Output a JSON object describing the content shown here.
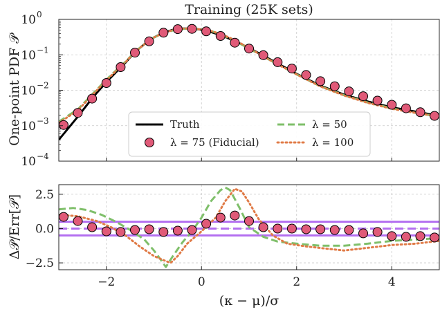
{
  "chart_data": [
    {
      "type": "line",
      "title": "Training (25K sets)",
      "ylabel": "One-point PDF 𝒫",
      "xlabel": "",
      "xlim": [
        -3.0,
        5.0
      ],
      "ylim": [
        0.0001,
        1.0
      ],
      "yscale": "log",
      "grid": true,
      "legend_placement": "lower-center",
      "x_ticks": [
        -2,
        0,
        2,
        4
      ],
      "y_ticks": [
        0.0001,
        0.001,
        0.01,
        0.1,
        1
      ],
      "y_tick_labels": [
        {
          "base": "10",
          "exp": "−4"
        },
        {
          "base": "10",
          "exp": "−3"
        },
        {
          "base": "10",
          "exp": "−2"
        },
        {
          "base": "10",
          "exp": "−1"
        },
        {
          "base": "10",
          "exp": "0"
        }
      ],
      "series": [
        {
          "name": "Truth",
          "style": "solid",
          "color": "#000000",
          "x": [
            -3.0,
            -2.6,
            -2.4,
            -2.2,
            -2.0,
            -1.8,
            -1.6,
            -1.4,
            -1.2,
            -1.0,
            -0.8,
            -0.6,
            -0.4,
            -0.2,
            0.0,
            0.2,
            0.4,
            0.6,
            0.8,
            1.0,
            1.2,
            1.4,
            1.6,
            1.8,
            2.0,
            2.5,
            3.0,
            3.5,
            4.0,
            4.5,
            5.0
          ],
          "y": [
            0.0004,
            0.0018,
            0.004,
            0.0085,
            0.017,
            0.032,
            0.06,
            0.12,
            0.2,
            0.31,
            0.42,
            0.51,
            0.55,
            0.55,
            0.51,
            0.44,
            0.36,
            0.28,
            0.21,
            0.155,
            0.112,
            0.08,
            0.057,
            0.041,
            0.029,
            0.0135,
            0.0075,
            0.0048,
            0.0033,
            0.0025,
            0.0019
          ]
        },
        {
          "name": "λ = 75 (Fiducial)",
          "style": "markers",
          "color": "#e05a78",
          "x": [
            -2.9,
            -2.6,
            -2.3,
            -2.0,
            -1.7,
            -1.4,
            -1.1,
            -0.8,
            -0.5,
            -0.2,
            0.1,
            0.4,
            0.7,
            1.0,
            1.3,
            1.6,
            1.9,
            2.2,
            2.5,
            2.8,
            3.1,
            3.4,
            3.7,
            4.0,
            4.3,
            4.6,
            4.9
          ],
          "y": [
            0.00105,
            0.0023,
            0.0058,
            0.016,
            0.045,
            0.115,
            0.24,
            0.42,
            0.53,
            0.54,
            0.46,
            0.34,
            0.22,
            0.15,
            0.098,
            0.062,
            0.041,
            0.027,
            0.018,
            0.013,
            0.0093,
            0.0068,
            0.0051,
            0.0039,
            0.0031,
            0.0024,
            0.0019
          ]
        },
        {
          "name": "λ = 50",
          "style": "dashed",
          "color": "#7fbf6a",
          "x": [
            -3.0,
            -2.6,
            -2.4,
            -2.2,
            -2.0,
            -1.8,
            -1.6,
            -1.4,
            -1.2,
            -1.0,
            -0.8,
            -0.6,
            -0.4,
            -0.2,
            0.0,
            0.2,
            0.4,
            0.6,
            0.8,
            1.0,
            1.2,
            1.4,
            1.6,
            1.8,
            2.0,
            2.5,
            3.0,
            3.5,
            4.0,
            4.5,
            5.0
          ],
          "y": [
            0.0013,
            0.0029,
            0.0055,
            0.0105,
            0.02,
            0.036,
            0.064,
            0.12,
            0.2,
            0.31,
            0.4,
            0.49,
            0.54,
            0.55,
            0.53,
            0.47,
            0.38,
            0.28,
            0.21,
            0.15,
            0.107,
            0.076,
            0.054,
            0.039,
            0.028,
            0.013,
            0.0072,
            0.0045,
            0.0031,
            0.0023,
            0.0018
          ]
        },
        {
          "name": "λ = 100",
          "style": "dotted",
          "color": "#e07b47",
          "x": [
            -3.0,
            -2.6,
            -2.4,
            -2.2,
            -2.0,
            -1.8,
            -1.6,
            -1.4,
            -1.2,
            -1.0,
            -0.8,
            -0.6,
            -0.4,
            -0.2,
            0.0,
            0.2,
            0.4,
            0.6,
            0.8,
            1.0,
            1.2,
            1.4,
            1.6,
            1.8,
            2.0,
            2.5,
            3.0,
            3.5,
            4.0,
            4.5,
            5.0
          ],
          "y": [
            0.0012,
            0.0027,
            0.0052,
            0.01,
            0.019,
            0.035,
            0.062,
            0.12,
            0.2,
            0.31,
            0.41,
            0.5,
            0.55,
            0.55,
            0.52,
            0.47,
            0.39,
            0.3,
            0.22,
            0.155,
            0.108,
            0.076,
            0.054,
            0.039,
            0.028,
            0.0128,
            0.0071,
            0.0044,
            0.003,
            0.0023,
            0.0018
          ]
        }
      ]
    },
    {
      "type": "line",
      "title": "",
      "ylabel": "Δ𝒫/Err[𝒫]",
      "xlabel": "(κ − μ)/σ",
      "xlim": [
        -3.0,
        5.0
      ],
      "ylim": [
        -3.0,
        3.2
      ],
      "grid": true,
      "x_ticks": [
        -2,
        0,
        2,
        4
      ],
      "x_tick_labels": [
        "−2",
        "0",
        "2",
        "4"
      ],
      "y_ticks": [
        -2.5,
        0.0,
        2.5
      ],
      "y_tick_labels": [
        "−2.5",
        "0.0",
        "2.5"
      ],
      "reference_lines": [
        {
          "y": 0.5,
          "style": "solid",
          "color": "#b36ef0"
        },
        {
          "y": -0.5,
          "style": "solid",
          "color": "#b36ef0"
        },
        {
          "y": 0.0,
          "style": "dashed",
          "color": "#b36ef0"
        }
      ],
      "series": [
        {
          "name": "λ = 75 (Fiducial)",
          "style": "markers",
          "color": "#e05a78",
          "x": [
            -2.9,
            -2.6,
            -2.3,
            -2.0,
            -1.7,
            -1.4,
            -1.1,
            -0.8,
            -0.5,
            -0.2,
            0.1,
            0.4,
            0.7,
            1.0,
            1.3,
            1.6,
            1.9,
            2.2,
            2.5,
            2.8,
            3.1,
            3.4,
            3.7,
            4.0,
            4.3,
            4.6,
            4.9
          ],
          "y": [
            0.85,
            0.55,
            0.1,
            -0.2,
            -0.25,
            -0.1,
            -0.05,
            -0.25,
            -0.15,
            -0.1,
            0.35,
            0.8,
            0.95,
            0.55,
            0.1,
            0.0,
            0.0,
            -0.05,
            -0.05,
            -0.1,
            -0.1,
            -0.35,
            -0.25,
            -0.55,
            -0.6,
            -0.55,
            -0.65
          ]
        },
        {
          "name": "λ = 50",
          "style": "dashed",
          "color": "#7fbf6a",
          "x": [
            -3.0,
            -2.7,
            -2.4,
            -2.1,
            -1.8,
            -1.5,
            -1.2,
            -1.0,
            -0.85,
            -0.75,
            -0.6,
            -0.4,
            -0.2,
            0.0,
            0.2,
            0.4,
            0.5,
            0.6,
            0.8,
            1.0,
            1.3,
            1.6,
            2.0,
            2.5,
            3.0,
            3.5,
            4.0,
            4.5,
            5.0
          ],
          "y": [
            1.4,
            1.5,
            1.35,
            1.0,
            0.5,
            -0.1,
            -0.8,
            -1.6,
            -2.3,
            -2.8,
            -2.0,
            -1.0,
            -0.2,
            0.8,
            2.0,
            2.8,
            3.0,
            2.8,
            1.5,
            0.1,
            -0.6,
            -0.95,
            -1.1,
            -1.25,
            -1.25,
            -1.1,
            -0.9,
            -0.8,
            -0.7
          ]
        },
        {
          "name": "λ = 100",
          "style": "dotted",
          "color": "#e07b47",
          "x": [
            -3.0,
            -2.6,
            -2.2,
            -1.9,
            -1.6,
            -1.3,
            -1.0,
            -0.8,
            -0.65,
            -0.5,
            -0.3,
            0.0,
            0.3,
            0.5,
            0.7,
            0.85,
            1.0,
            1.2,
            1.5,
            1.8,
            2.2,
            2.6,
            3.0,
            3.5,
            4.0,
            4.5,
            5.0
          ],
          "y": [
            1.0,
            0.9,
            0.55,
            0.1,
            -0.5,
            -1.3,
            -2.0,
            -2.3,
            -2.5,
            -2.0,
            -1.1,
            -0.2,
            0.8,
            2.0,
            2.9,
            2.7,
            1.9,
            0.7,
            -0.5,
            -1.1,
            -1.3,
            -1.45,
            -1.6,
            -1.4,
            -1.2,
            -1.1,
            -0.9
          ]
        }
      ]
    }
  ]
}
